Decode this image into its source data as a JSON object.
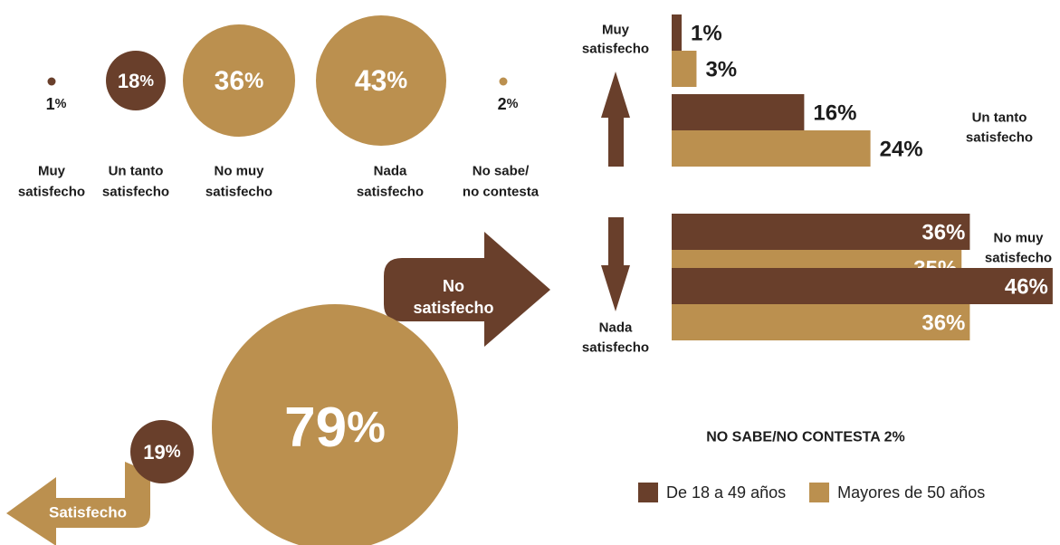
{
  "colors": {
    "dark": "#693f2b",
    "light": "#bb904f",
    "text": "#1c1c1c",
    "white": "#ffffff"
  },
  "bubbles": [
    {
      "value": "1",
      "suffix": "%",
      "label": [
        "Muy",
        "satisfecho"
      ],
      "color": "dark"
    },
    {
      "value": "18",
      "suffix": "%",
      "label": [
        "Un tanto",
        "satisfecho"
      ],
      "color": "dark"
    },
    {
      "value": "36",
      "suffix": "%",
      "label": [
        "No muy",
        "satisfecho"
      ],
      "color": "light"
    },
    {
      "value": "43",
      "suffix": "%",
      "label": [
        "Nada",
        "satisfecho"
      ],
      "color": "light"
    },
    {
      "value": "2",
      "suffix": "%",
      "label": [
        "No sabe/",
        "no contesta"
      ],
      "color": "light"
    }
  ],
  "summary": {
    "not_satisfied": {
      "value": "79",
      "suffix": "%",
      "arrow_label": [
        "No",
        "satisfecho"
      ]
    },
    "satisfied": {
      "value": "19",
      "suffix": "%",
      "arrow_label": [
        "Satisfecho"
      ]
    }
  },
  "bar_labels": {
    "muy": [
      "Muy",
      "satisfecho"
    ],
    "untanto": [
      "Un tanto",
      "satisfecho"
    ],
    "nomuy": [
      "No muy",
      "satisfecho"
    ],
    "nada": [
      "Nada",
      "satisfecho"
    ]
  },
  "note": "NO SABE/NO CONTESTA 2%",
  "legend": [
    {
      "label": "De 18 a 49 años",
      "color": "dark"
    },
    {
      "label": "Mayores de 50 años",
      "color": "light"
    }
  ],
  "chart_data": {
    "type": "bar",
    "orientation": "horizontal",
    "unit": "%",
    "categories": [
      "Muy satisfecho",
      "Un tanto satisfecho",
      "No muy satisfecho",
      "Nada satisfecho"
    ],
    "series": [
      {
        "name": "De 18 a 49 años",
        "values": [
          1,
          16,
          36,
          46
        ]
      },
      {
        "name": "Mayores de 50 años",
        "values": [
          3,
          24,
          35,
          36
        ]
      }
    ]
  }
}
